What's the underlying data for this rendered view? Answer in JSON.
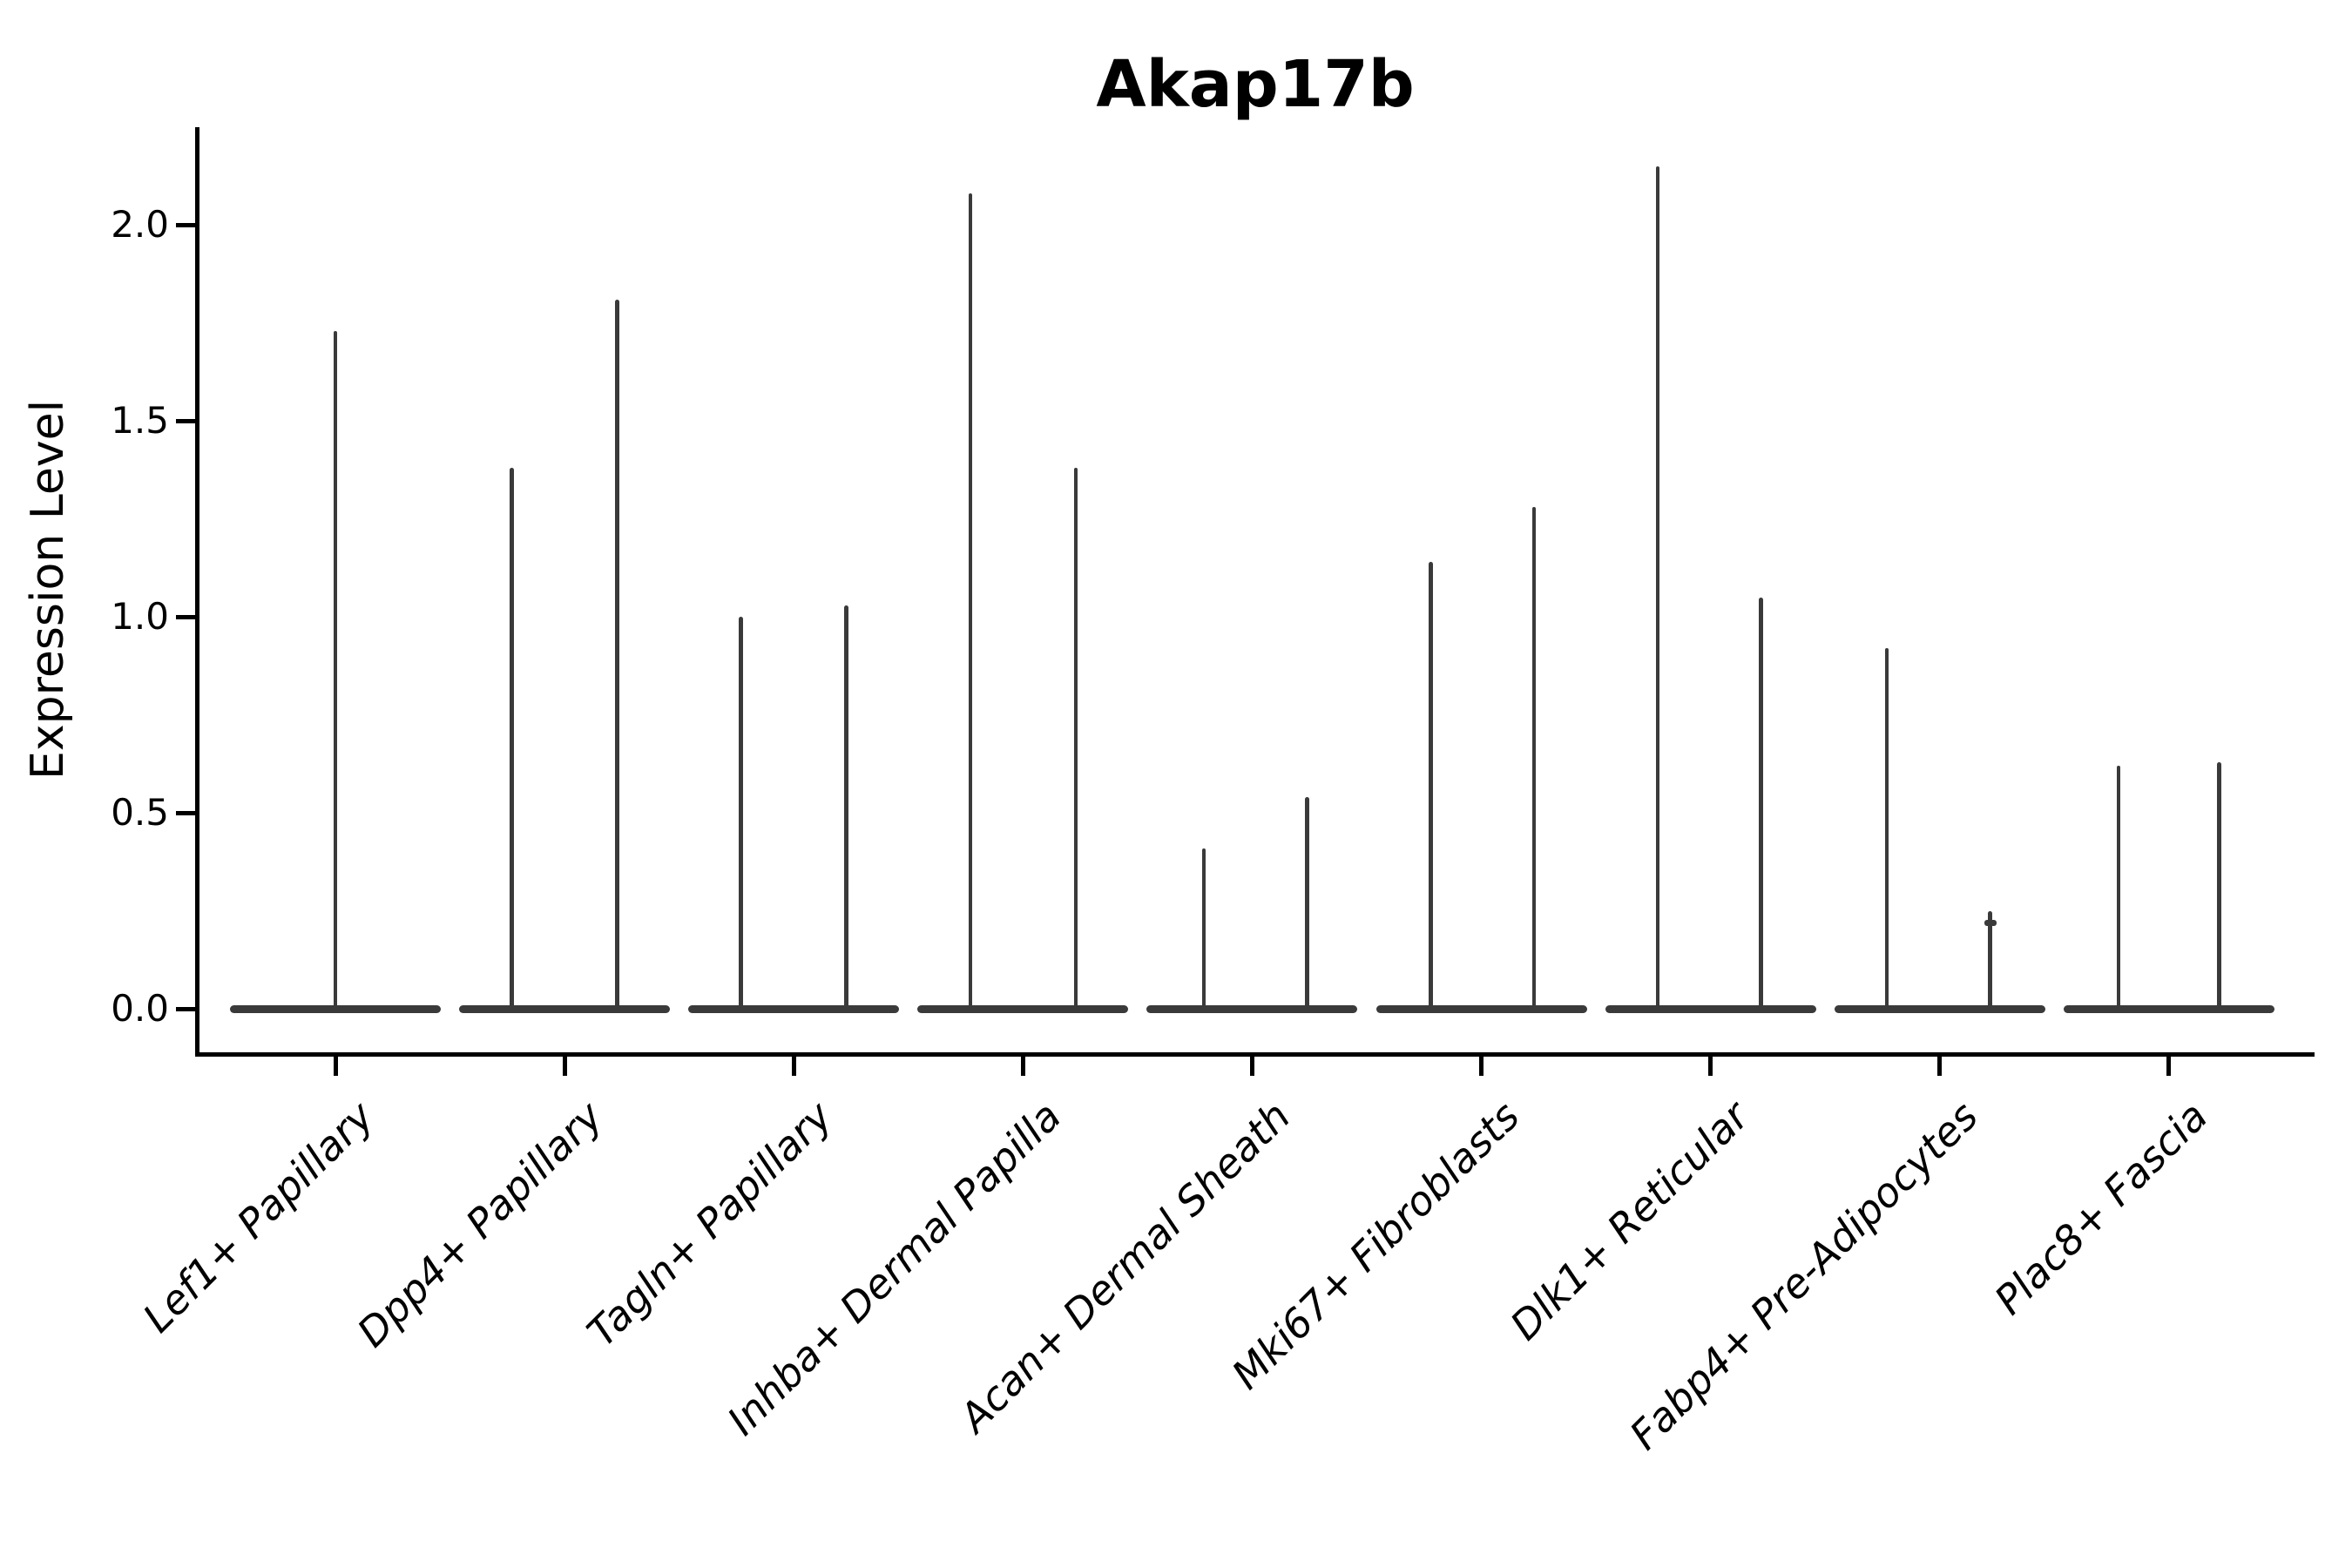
{
  "title": "Akap17b",
  "ylabel": "Expression Level",
  "colors": {
    "background": "#ffffff",
    "axis": "#000000",
    "violin": "#3a3a3a",
    "text": "#000000"
  },
  "chart_data": {
    "type": "violin",
    "title": "Akap17b",
    "xlabel": "",
    "ylabel": "Expression Level",
    "ylim": [
      -0.11,
      2.25
    ],
    "yticks": [
      "0.0",
      "0.5",
      "1.0",
      "1.5",
      "2.0"
    ],
    "ytick_values": [
      0.0,
      0.5,
      1.0,
      1.5,
      2.0
    ],
    "grid": false,
    "legend": "none",
    "categories": [
      "Lef1+ Papillary",
      "Dpp4+ Papillary",
      "Tagln+ Papillary",
      "Inhba+ Dermal Papilla",
      "Acan+ Dermal Sheath",
      "Mki67+ Fibroblasts",
      "Dlk1+ Reticular",
      "Fabp4+ Pre-Adipocytes",
      "Plac8+ Fascia"
    ],
    "baseline_value": 0.0,
    "violins": [
      {
        "category": "Lef1+ Papillary",
        "spikes": [
          {
            "pos": 0.0,
            "max": 1.73
          }
        ]
      },
      {
        "category": "Dpp4+ Papillary",
        "spikes": [
          {
            "pos": -0.23,
            "max": 1.38
          },
          {
            "pos": 0.23,
            "max": 1.81
          }
        ]
      },
      {
        "category": "Tagln+ Papillary",
        "spikes": [
          {
            "pos": -0.23,
            "max": 1.0
          },
          {
            "pos": 0.23,
            "max": 1.03
          }
        ]
      },
      {
        "category": "Inhba+ Dermal Papilla",
        "spikes": [
          {
            "pos": -0.23,
            "max": 2.08
          },
          {
            "pos": 0.23,
            "max": 1.38
          }
        ]
      },
      {
        "category": "Acan+ Dermal Sheath",
        "spikes": [
          {
            "pos": -0.21,
            "max": 0.41
          },
          {
            "pos": 0.24,
            "max": 0.54
          }
        ]
      },
      {
        "category": "Mki67+ Fibroblasts",
        "spikes": [
          {
            "pos": -0.22,
            "max": 1.14
          },
          {
            "pos": 0.23,
            "max": 1.28
          }
        ]
      },
      {
        "category": "Dlk1+ Reticular",
        "spikes": [
          {
            "pos": -0.23,
            "max": 2.15
          },
          {
            "pos": 0.22,
            "max": 1.05
          }
        ]
      },
      {
        "category": "Fabp4+ Pre-Adipocytes",
        "spikes": [
          {
            "pos": -0.23,
            "max": 0.92
          },
          {
            "pos": 0.22,
            "max": 0.25,
            "nub": 0.22
          }
        ]
      },
      {
        "category": "Plac8+ Fascia",
        "spikes": [
          {
            "pos": -0.22,
            "max": 0.62
          },
          {
            "pos": 0.22,
            "max": 0.63
          }
        ]
      }
    ]
  }
}
